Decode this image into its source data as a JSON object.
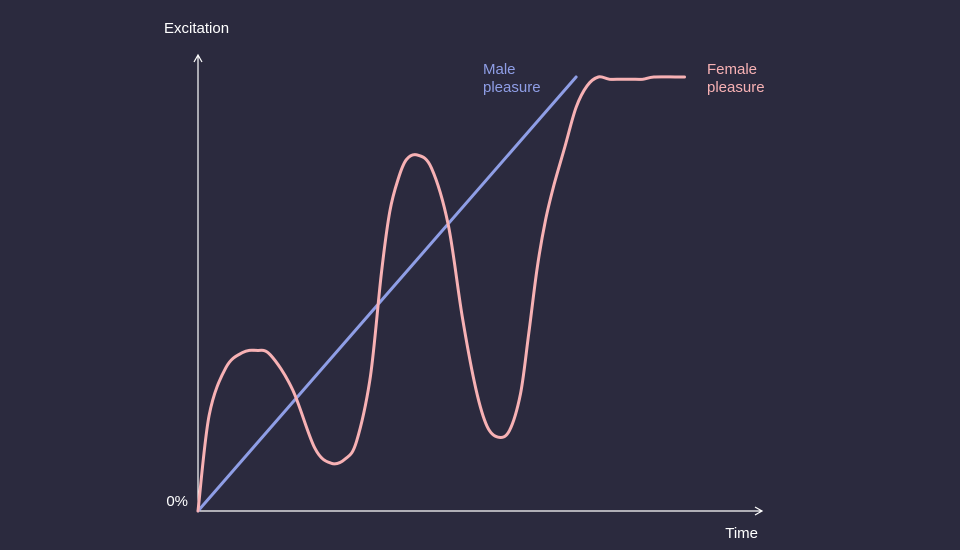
{
  "colors": {
    "background": "#2b2a3e",
    "axis": "#ffffff",
    "male": "#8f9ee6",
    "female": "#f7b1b4"
  },
  "chart_data": {
    "type": "line",
    "title": "",
    "xlabel": "Time",
    "ylabel": "Excitation",
    "y_tick_labels": [
      "0%"
    ],
    "xlim": [
      0,
      100
    ],
    "ylim": [
      0,
      100
    ],
    "grid": false,
    "legend": "inline labels at line ends (top-right)",
    "series": [
      {
        "name": "Male\npleasure",
        "color": "#8f9ee6",
        "x": [
          0,
          68
        ],
        "y": [
          0,
          100
        ]
      },
      {
        "name": "Female\npleasure",
        "color": "#f7b1b4",
        "x": [
          0,
          2,
          5,
          8,
          10.5,
          13,
          17,
          21,
          24,
          26.5,
          28.5,
          31,
          33,
          34.5,
          36,
          37.5,
          39.5,
          42,
          45,
          47.5,
          50,
          52,
          54,
          56,
          58,
          59.5,
          61,
          62.5,
          64,
          66,
          68,
          70,
          72,
          74,
          76,
          78,
          80,
          82,
          86,
          87.5
        ],
        "y": [
          0,
          22,
          33,
          36.5,
          37,
          36,
          28,
          14.5,
          11,
          12,
          16,
          31,
          55,
          69,
          76.5,
          81,
          82,
          79,
          66,
          45,
          28,
          19.5,
          17,
          18.5,
          27,
          41,
          56,
          67,
          75,
          84,
          93,
          98,
          100,
          99.5,
          99.5,
          99.5,
          99.5,
          100,
          100,
          100
        ]
      }
    ]
  }
}
